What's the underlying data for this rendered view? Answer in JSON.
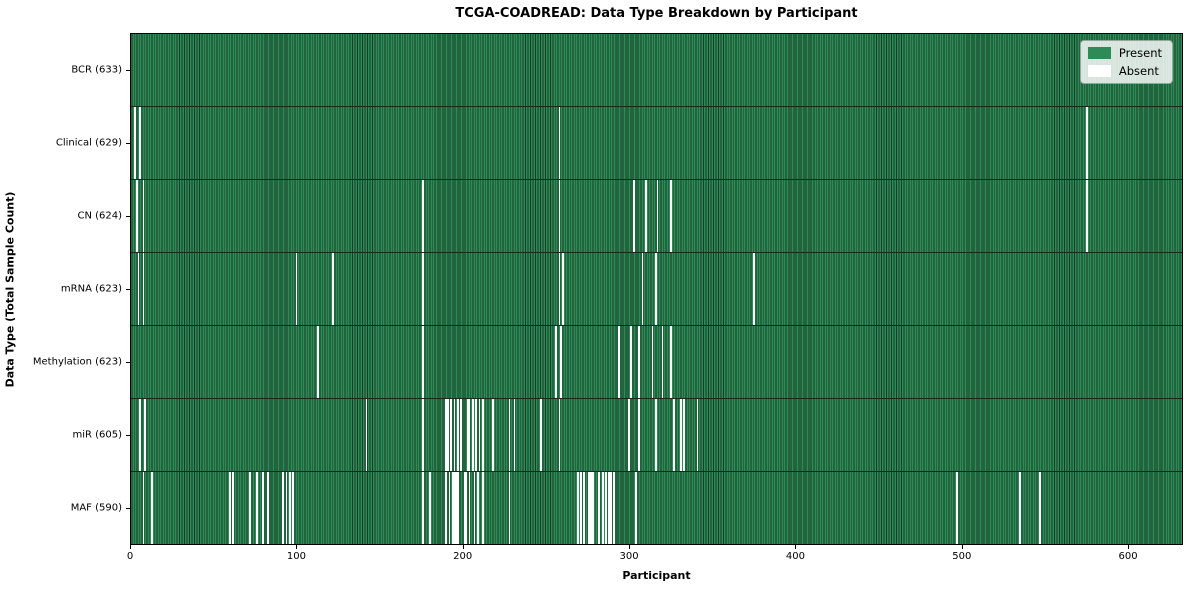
{
  "title": "TCGA-COADREAD: Data Type Breakdown by Participant",
  "legend": {
    "items": [
      {
        "label": "Present",
        "swatch": "#2e8b57"
      },
      {
        "label": "Absent",
        "swatch": "#ffffff"
      }
    ]
  },
  "chart_data": {
    "type": "heatmap",
    "title": "TCGA-COADREAD: Data Type Breakdown by Participant",
    "xlabel": "Participant",
    "ylabel": "Data Type (Total Sample Count)",
    "xlim": [
      0,
      633
    ],
    "x_ticks": [
      0,
      100,
      200,
      300,
      400,
      500,
      600
    ],
    "grid": false,
    "legend_position": "upper right",
    "colors": {
      "present": "#2e8b57",
      "absent": "#ffffff",
      "bar_edge": "#173d26"
    },
    "n_participants": 633,
    "rows": [
      {
        "label": "BCR (633)",
        "data_type": "BCR",
        "total": 633,
        "absent": []
      },
      {
        "label": "Clinical (629)",
        "data_type": "Clinical",
        "total": 629,
        "absent": [
          2,
          5,
          257,
          574
        ]
      },
      {
        "label": "CN (624)",
        "data_type": "CN",
        "total": 624,
        "absent": [
          3,
          7,
          175,
          257,
          302,
          309,
          316,
          324,
          574
        ]
      },
      {
        "label": "mRNA (623)",
        "data_type": "mRNA",
        "total": 623,
        "absent": [
          4,
          7,
          99,
          121,
          175,
          257,
          259,
          307,
          315,
          374
        ]
      },
      {
        "label": "Methylation (623)",
        "data_type": "Methylation",
        "total": 623,
        "absent": [
          112,
          175,
          255,
          258,
          293,
          300,
          305,
          313,
          319,
          324
        ]
      },
      {
        "label": "miR (605)",
        "data_type": "miR",
        "total": 605,
        "absent": [
          5,
          8,
          141,
          175,
          189,
          190,
          192,
          194,
          196,
          198,
          202,
          203,
          205,
          207,
          209,
          211,
          217,
          227,
          230,
          246,
          257,
          299,
          305,
          315,
          326,
          330,
          332,
          340
        ]
      },
      {
        "label": "MAF (590)",
        "data_type": "MAF",
        "total": 590,
        "absent": [
          7,
          12,
          59,
          61,
          71,
          75,
          79,
          82,
          91,
          93,
          95,
          97,
          175,
          179,
          189,
          191,
          193,
          194,
          195,
          196,
          200,
          201,
          203,
          206,
          208,
          211,
          227,
          268,
          270,
          272,
          275,
          276,
          277,
          281,
          283,
          285,
          287,
          288,
          290,
          303,
          496,
          534,
          546
        ]
      }
    ]
  }
}
